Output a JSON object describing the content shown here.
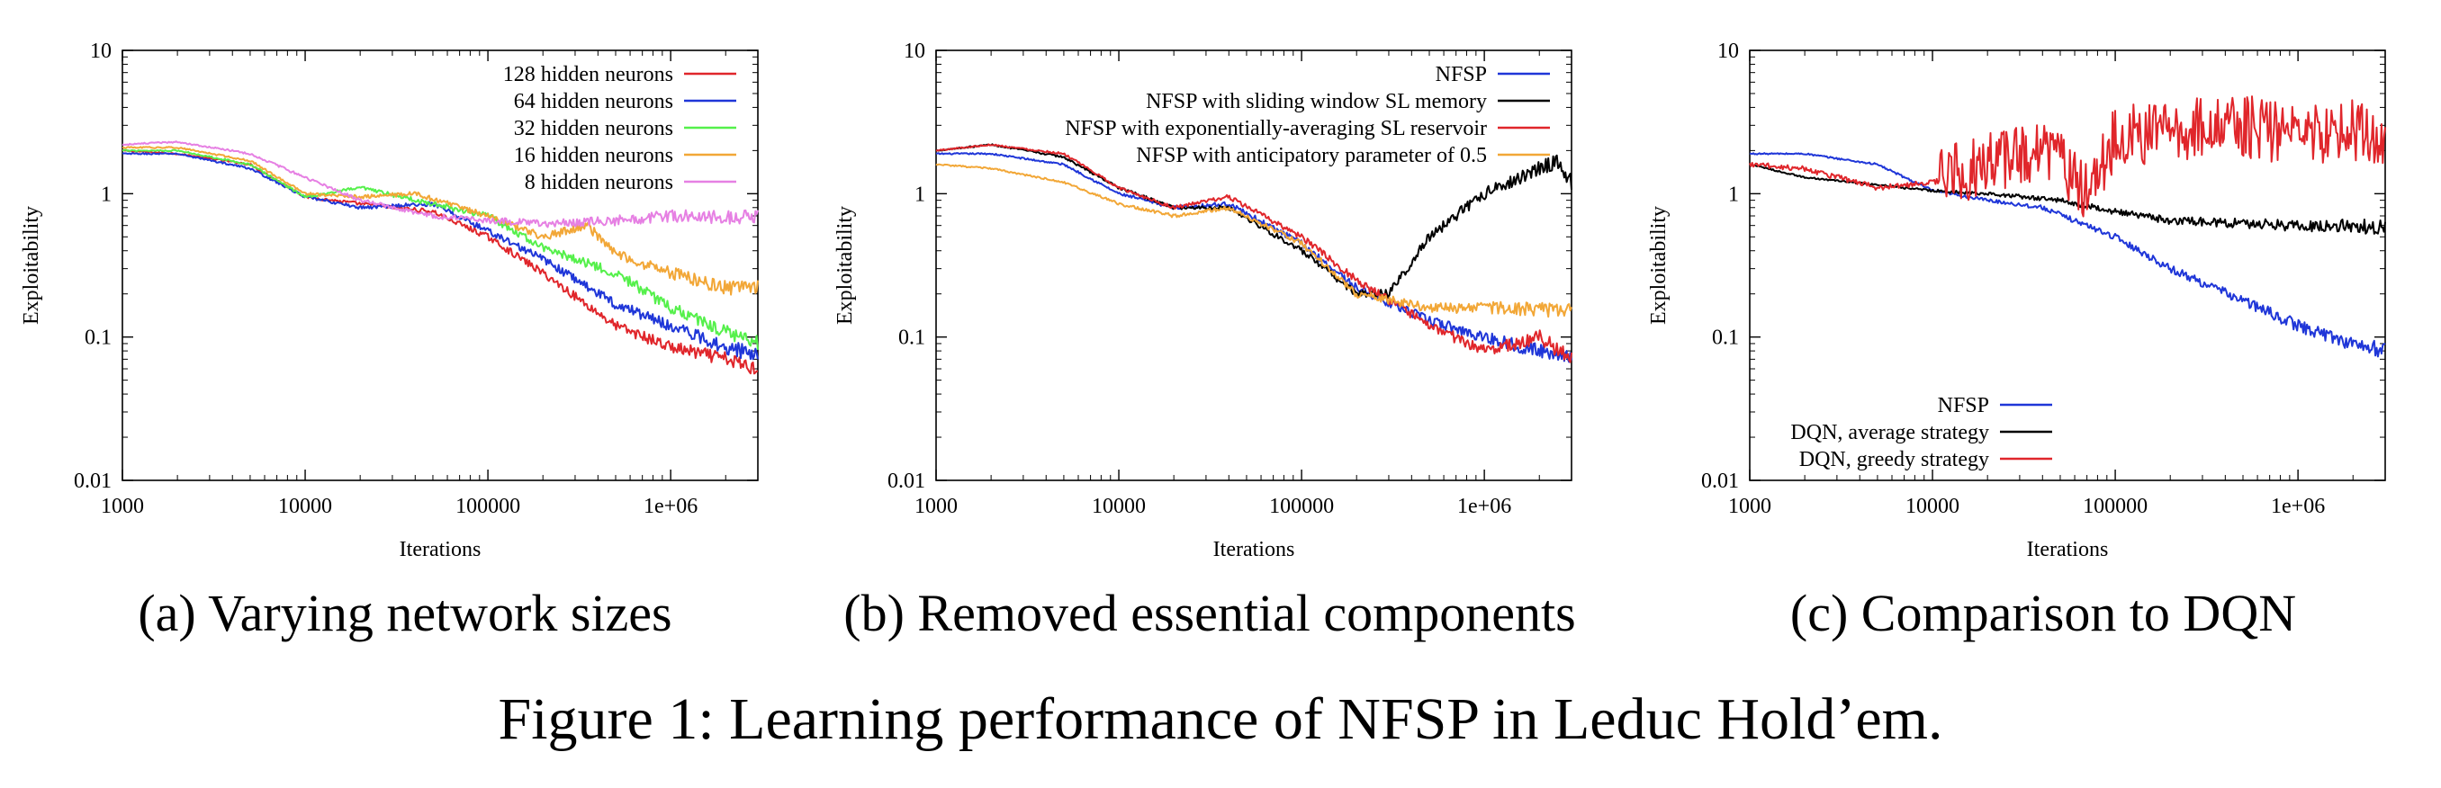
{
  "figure_caption": "Figure 1: Learning performance of NFSP in Leduc Hold’em.",
  "colors": {
    "red": "#e0262b",
    "blue": "#1f36d8",
    "green": "#55f04b",
    "orange": "#f2a737",
    "violet": "#e680e3",
    "black": "#000000"
  },
  "chart_data": [
    {
      "type": "line",
      "subcaption": "(a) Varying network sizes",
      "xlabel": "Iterations",
      "ylabel": "Exploitability",
      "xscale": "log",
      "yscale": "log",
      "xlim": [
        1000,
        3000000
      ],
      "ylim": [
        0.01,
        10
      ],
      "xticks": [
        "1000",
        "10000",
        "100000",
        "1e+06"
      ],
      "yticks": [
        "0.01",
        "0.1",
        "1",
        "10"
      ],
      "legend_position": "top-right",
      "series": [
        {
          "name": "128 hidden neurons",
          "color": "#e0262b",
          "x": [
            1000,
            2000,
            5000,
            10000,
            20000,
            50000,
            100000,
            200000,
            500000,
            1000000,
            2000000,
            3000000
          ],
          "y": [
            2.0,
            1.9,
            1.6,
            0.95,
            0.85,
            0.75,
            0.5,
            0.28,
            0.12,
            0.085,
            0.07,
            0.06
          ]
        },
        {
          "name": "64 hidden neurons",
          "color": "#1f36d8",
          "x": [
            1000,
            2000,
            5000,
            10000,
            20000,
            50000,
            100000,
            200000,
            500000,
            1000000,
            2000000,
            3000000
          ],
          "y": [
            1.9,
            1.9,
            1.5,
            0.95,
            0.8,
            0.85,
            0.55,
            0.35,
            0.17,
            0.12,
            0.085,
            0.075
          ]
        },
        {
          "name": "32 hidden neurons",
          "color": "#55f04b",
          "x": [
            1000,
            2000,
            5000,
            10000,
            20000,
            50000,
            100000,
            200000,
            500000,
            1000000,
            2000000,
            3000000
          ],
          "y": [
            2.0,
            2.0,
            1.6,
            0.95,
            1.1,
            0.85,
            0.7,
            0.42,
            0.28,
            0.16,
            0.11,
            0.09
          ]
        },
        {
          "name": "16 hidden neurons",
          "color": "#f2a737",
          "x": [
            1000,
            2000,
            5000,
            10000,
            20000,
            40000,
            100000,
            200000,
            350000,
            500000,
            1000000,
            2000000,
            3000000
          ],
          "y": [
            2.1,
            2.1,
            1.7,
            1.0,
            0.95,
            1.0,
            0.7,
            0.5,
            0.6,
            0.38,
            0.28,
            0.22,
            0.22
          ]
        },
        {
          "name": "8 hidden neurons",
          "color": "#e680e3",
          "x": [
            1000,
            2000,
            5000,
            10000,
            20000,
            50000,
            100000,
            200000,
            500000,
            1000000,
            2000000,
            3000000
          ],
          "y": [
            2.2,
            2.3,
            1.9,
            1.3,
            0.9,
            0.7,
            0.65,
            0.62,
            0.65,
            0.7,
            0.68,
            0.7
          ]
        }
      ]
    },
    {
      "type": "line",
      "subcaption": "(b) Removed essential components",
      "xlabel": "Iterations",
      "ylabel": "Exploitability",
      "xscale": "log",
      "yscale": "log",
      "xlim": [
        1000,
        3000000
      ],
      "ylim": [
        0.01,
        10
      ],
      "xticks": [
        "1000",
        "10000",
        "100000",
        "1e+06"
      ],
      "yticks": [
        "0.01",
        "0.1",
        "1",
        "10"
      ],
      "legend_position": "top-right",
      "series": [
        {
          "name": "NFSP",
          "color": "#1f36d8",
          "x": [
            1000,
            2000,
            5000,
            10000,
            20000,
            40000,
            100000,
            200000,
            500000,
            1000000,
            2000000,
            3000000
          ],
          "y": [
            1.9,
            1.9,
            1.6,
            1.0,
            0.8,
            0.85,
            0.45,
            0.22,
            0.13,
            0.1,
            0.08,
            0.075
          ]
        },
        {
          "name": "NFSP with sliding window SL memory",
          "color": "#000000",
          "x": [
            1000,
            2000,
            5000,
            10000,
            20000,
            40000,
            100000,
            200000,
            300000,
            500000,
            1000000,
            2000000,
            2500000,
            3000000
          ],
          "y": [
            2.0,
            2.2,
            1.8,
            1.1,
            0.8,
            0.8,
            0.4,
            0.2,
            0.2,
            0.5,
            1.0,
            1.5,
            1.7,
            1.2
          ]
        },
        {
          "name": "NFSP with exponentially-averaging SL reservoir",
          "color": "#e0262b",
          "x": [
            1000,
            2000,
            5000,
            10000,
            20000,
            40000,
            100000,
            200000,
            500000,
            1000000,
            2000000,
            3000000
          ],
          "y": [
            2.0,
            2.2,
            1.9,
            1.1,
            0.8,
            0.95,
            0.5,
            0.25,
            0.12,
            0.08,
            0.1,
            0.07
          ]
        },
        {
          "name": "NFSP with anticipatory parameter of 0.5",
          "color": "#f2a737",
          "x": [
            1000,
            2000,
            5000,
            10000,
            20000,
            40000,
            100000,
            200000,
            500000,
            1000000,
            2000000,
            3000000
          ],
          "y": [
            1.6,
            1.5,
            1.2,
            0.85,
            0.7,
            0.8,
            0.45,
            0.2,
            0.16,
            0.16,
            0.155,
            0.15
          ]
        }
      ]
    },
    {
      "type": "line",
      "subcaption": "(c) Comparison to DQN",
      "xlabel": "Iterations",
      "ylabel": "Exploitability",
      "xscale": "log",
      "yscale": "log",
      "xlim": [
        1000,
        3000000
      ],
      "ylim": [
        0.01,
        10
      ],
      "xticks": [
        "1000",
        "10000",
        "100000",
        "1e+06"
      ],
      "yticks": [
        "0.01",
        "0.1",
        "1",
        "10"
      ],
      "legend_position": "bottom-left",
      "series": [
        {
          "name": "NFSP",
          "color": "#1f36d8",
          "x": [
            1000,
            2000,
            5000,
            10000,
            20000,
            40000,
            100000,
            200000,
            500000,
            1000000,
            2000000,
            3000000
          ],
          "y": [
            1.9,
            1.9,
            1.6,
            1.05,
            0.9,
            0.8,
            0.5,
            0.3,
            0.18,
            0.12,
            0.09,
            0.08
          ]
        },
        {
          "name": "DQN, average strategy",
          "color": "#000000",
          "x": [
            1000,
            2000,
            5000,
            10000,
            20000,
            50000,
            100000,
            200000,
            500000,
            1000000,
            2000000,
            3000000
          ],
          "y": [
            1.6,
            1.3,
            1.15,
            1.05,
            1.0,
            0.9,
            0.75,
            0.65,
            0.62,
            0.6,
            0.6,
            0.58
          ]
        },
        {
          "name": "DQN, greedy strategy",
          "color": "#e0262b",
          "x": [
            1000,
            2000,
            5000,
            10000,
            20000,
            30000,
            50000,
            70000,
            100000,
            200000,
            500000,
            1000000,
            2000000,
            3000000
          ],
          "y": [
            1.6,
            1.5,
            1.1,
            1.2,
            1.6,
            2.0,
            1.8,
            1.0,
            2.5,
            2.8,
            3.0,
            2.5,
            2.8,
            2.3
          ]
        }
      ]
    }
  ]
}
